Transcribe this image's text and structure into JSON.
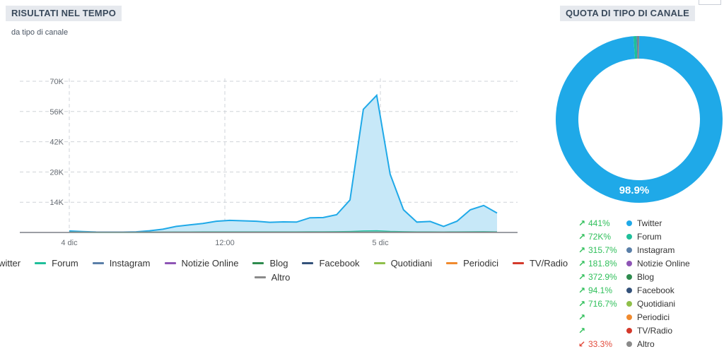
{
  "left_panel": {
    "title": "RISULTATI NEL TEMPO",
    "subtitle": "da tipo di canale"
  },
  "right_panel": {
    "title": "QUOTA DI TIPO DI CANALE"
  },
  "colors": {
    "Twitter": "#1fa9e8",
    "Forum": "#1fbf9a",
    "Instagram": "#5a7fa8",
    "Notizie Online": "#8e55b5",
    "Blog": "#2e8b4e",
    "Facebook": "#34527a",
    "Quotidiani": "#8fbf4a",
    "Periodici": "#f08a2e",
    "TV/Radio": "#d4392b",
    "Altro": "#8a8a8a"
  },
  "chart_data": [
    {
      "type": "area",
      "x_tick_labels": [
        "4 dic",
        "12:00",
        "5 dic"
      ],
      "y_tick_labels": [
        "14K",
        "28K",
        "42K",
        "56K",
        "70K"
      ],
      "ylim": [
        0,
        70000
      ],
      "grid": true,
      "legend_position": "bottom",
      "series": [
        {
          "name": "Twitter",
          "values": [
            700,
            400,
            200,
            150,
            150,
            300,
            800,
            1500,
            2800,
            3500,
            4200,
            5200,
            5600,
            5400,
            5200,
            4700,
            4900,
            4800,
            6800,
            6900,
            8200,
            15000,
            57000,
            63500,
            27000,
            10500,
            4800,
            5100,
            2800,
            5200,
            10500,
            12500,
            9000
          ]
        },
        {
          "name": "Forum",
          "values": [
            200,
            150,
            100,
            80,
            80,
            100,
            150,
            200,
            250,
            250,
            280,
            300,
            300,
            300,
            300,
            280,
            280,
            280,
            320,
            320,
            350,
            450,
            700,
            800,
            500,
            350,
            280,
            280,
            250,
            280,
            320,
            350,
            300
          ]
        },
        {
          "name": "Instagram",
          "values": []
        },
        {
          "name": "Notizie Online",
          "values": []
        },
        {
          "name": "Blog",
          "values": []
        },
        {
          "name": "Facebook",
          "values": []
        },
        {
          "name": "Quotidiani",
          "values": []
        },
        {
          "name": "Periodici",
          "values": []
        },
        {
          "name": "TV/Radio",
          "values": []
        },
        {
          "name": "Altro",
          "values": []
        }
      ]
    },
    {
      "type": "pie",
      "labels": [
        "Twitter",
        "Forum",
        "Instagram",
        "Notizie Online",
        "Blog",
        "Facebook",
        "Quotidiani",
        "Periodici",
        "TV/Radio",
        "Altro"
      ],
      "values": [
        98.9,
        0.6,
        0.2,
        0.1,
        0.1,
        0.05,
        0.03,
        0.01,
        0.01,
        0.0
      ],
      "center_label": "98.9%",
      "changes": [
        {
          "arrow": "up",
          "value": "441%"
        },
        {
          "arrow": "up",
          "value": "72K%"
        },
        {
          "arrow": "up",
          "value": "315.7%"
        },
        {
          "arrow": "up",
          "value": "181.8%"
        },
        {
          "arrow": "up",
          "value": "372.9%"
        },
        {
          "arrow": "up",
          "value": "94.1%"
        },
        {
          "arrow": "up",
          "value": "716.7%"
        },
        {
          "arrow": "up",
          "value": ""
        },
        {
          "arrow": "up",
          "value": ""
        },
        {
          "arrow": "down",
          "value": "33.3%"
        }
      ]
    }
  ]
}
